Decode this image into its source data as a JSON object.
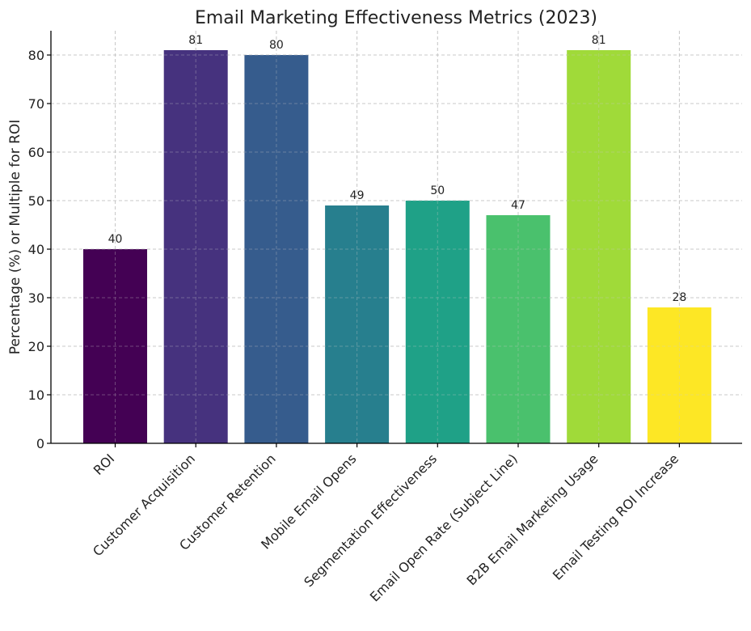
{
  "chart_data": {
    "type": "bar",
    "title": "Email Marketing Effectiveness Metrics (2023)",
    "xlabel": "",
    "ylabel": "Percentage (%) or Multiple for ROI",
    "categories": [
      "ROI",
      "Customer Acquisition",
      "Customer Retention",
      "Mobile Email Opens",
      "Segmentation Effectiveness",
      "Email Open Rate (Subject Line)",
      "B2B Email Marketing Usage",
      "Email Testing ROI Increase"
    ],
    "values": [
      40,
      81,
      80,
      49,
      50,
      47,
      81,
      28
    ],
    "data_labels": [
      "40",
      "81",
      "80",
      "49",
      "50",
      "47",
      "81",
      "28"
    ],
    "colors": [
      "#440154",
      "#46327e",
      "#365c8d",
      "#277f8e",
      "#1fa187",
      "#4ac16d",
      "#a0da39",
      "#fde725"
    ],
    "yticks": [
      0,
      10,
      20,
      30,
      40,
      50,
      60,
      70,
      80
    ],
    "ytick_labels": [
      "0",
      "10",
      "20",
      "30",
      "40",
      "50",
      "60",
      "70",
      "80"
    ],
    "ylim": [
      0,
      85
    ],
    "grid": true,
    "legend": "none"
  }
}
